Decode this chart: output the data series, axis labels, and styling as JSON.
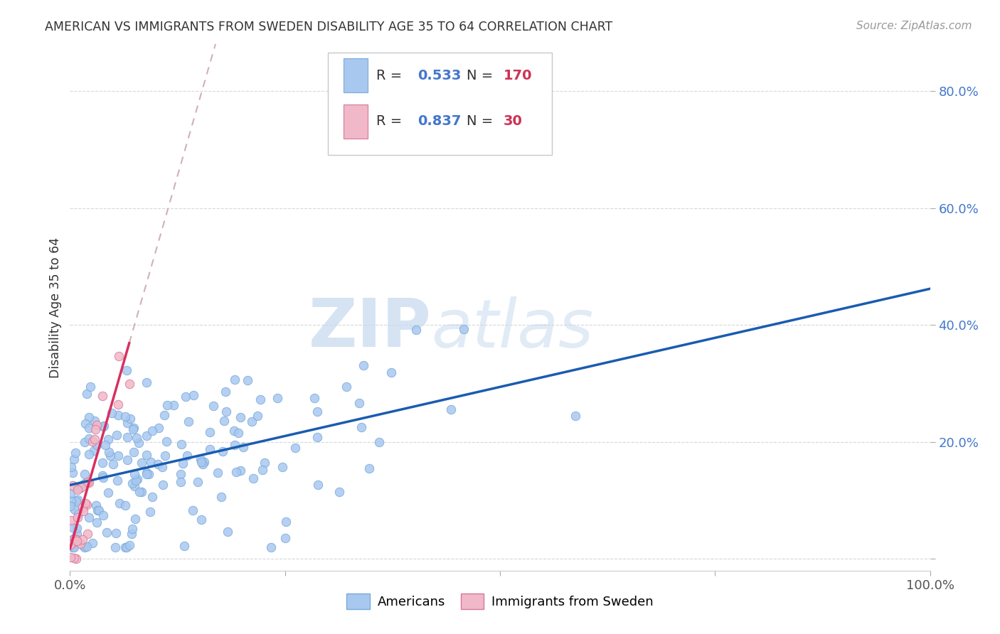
{
  "title": "AMERICAN VS IMMIGRANTS FROM SWEDEN DISABILITY AGE 35 TO 64 CORRELATION CHART",
  "source": "Source: ZipAtlas.com",
  "ylabel": "Disability Age 35 to 64",
  "xlim": [
    0.0,
    1.0
  ],
  "ylim": [
    -0.02,
    0.88
  ],
  "americans_color": "#a8c8f0",
  "americans_edge_color": "#7aaad8",
  "immigrants_color": "#f0b8c8",
  "immigrants_edge_color": "#d87898",
  "trendline_americans_color": "#1a5cb0",
  "trendline_immigrants_color": "#d83060",
  "trendline_dash_color": "#d0b0b8",
  "legend_R_americans": "0.533",
  "legend_N_americans": "170",
  "legend_R_immigrants": "0.837",
  "legend_N_immigrants": "30",
  "watermark_zip": "ZIP",
  "watermark_atlas": "atlas",
  "background_color": "#ffffff",
  "grid_color": "#d8d8d8",
  "R_color": "#4477cc",
  "N_color": "#cc3355",
  "title_color": "#333333",
  "ylabel_color": "#333333",
  "ytick_color": "#4477cc",
  "xtick_color": "#555555"
}
